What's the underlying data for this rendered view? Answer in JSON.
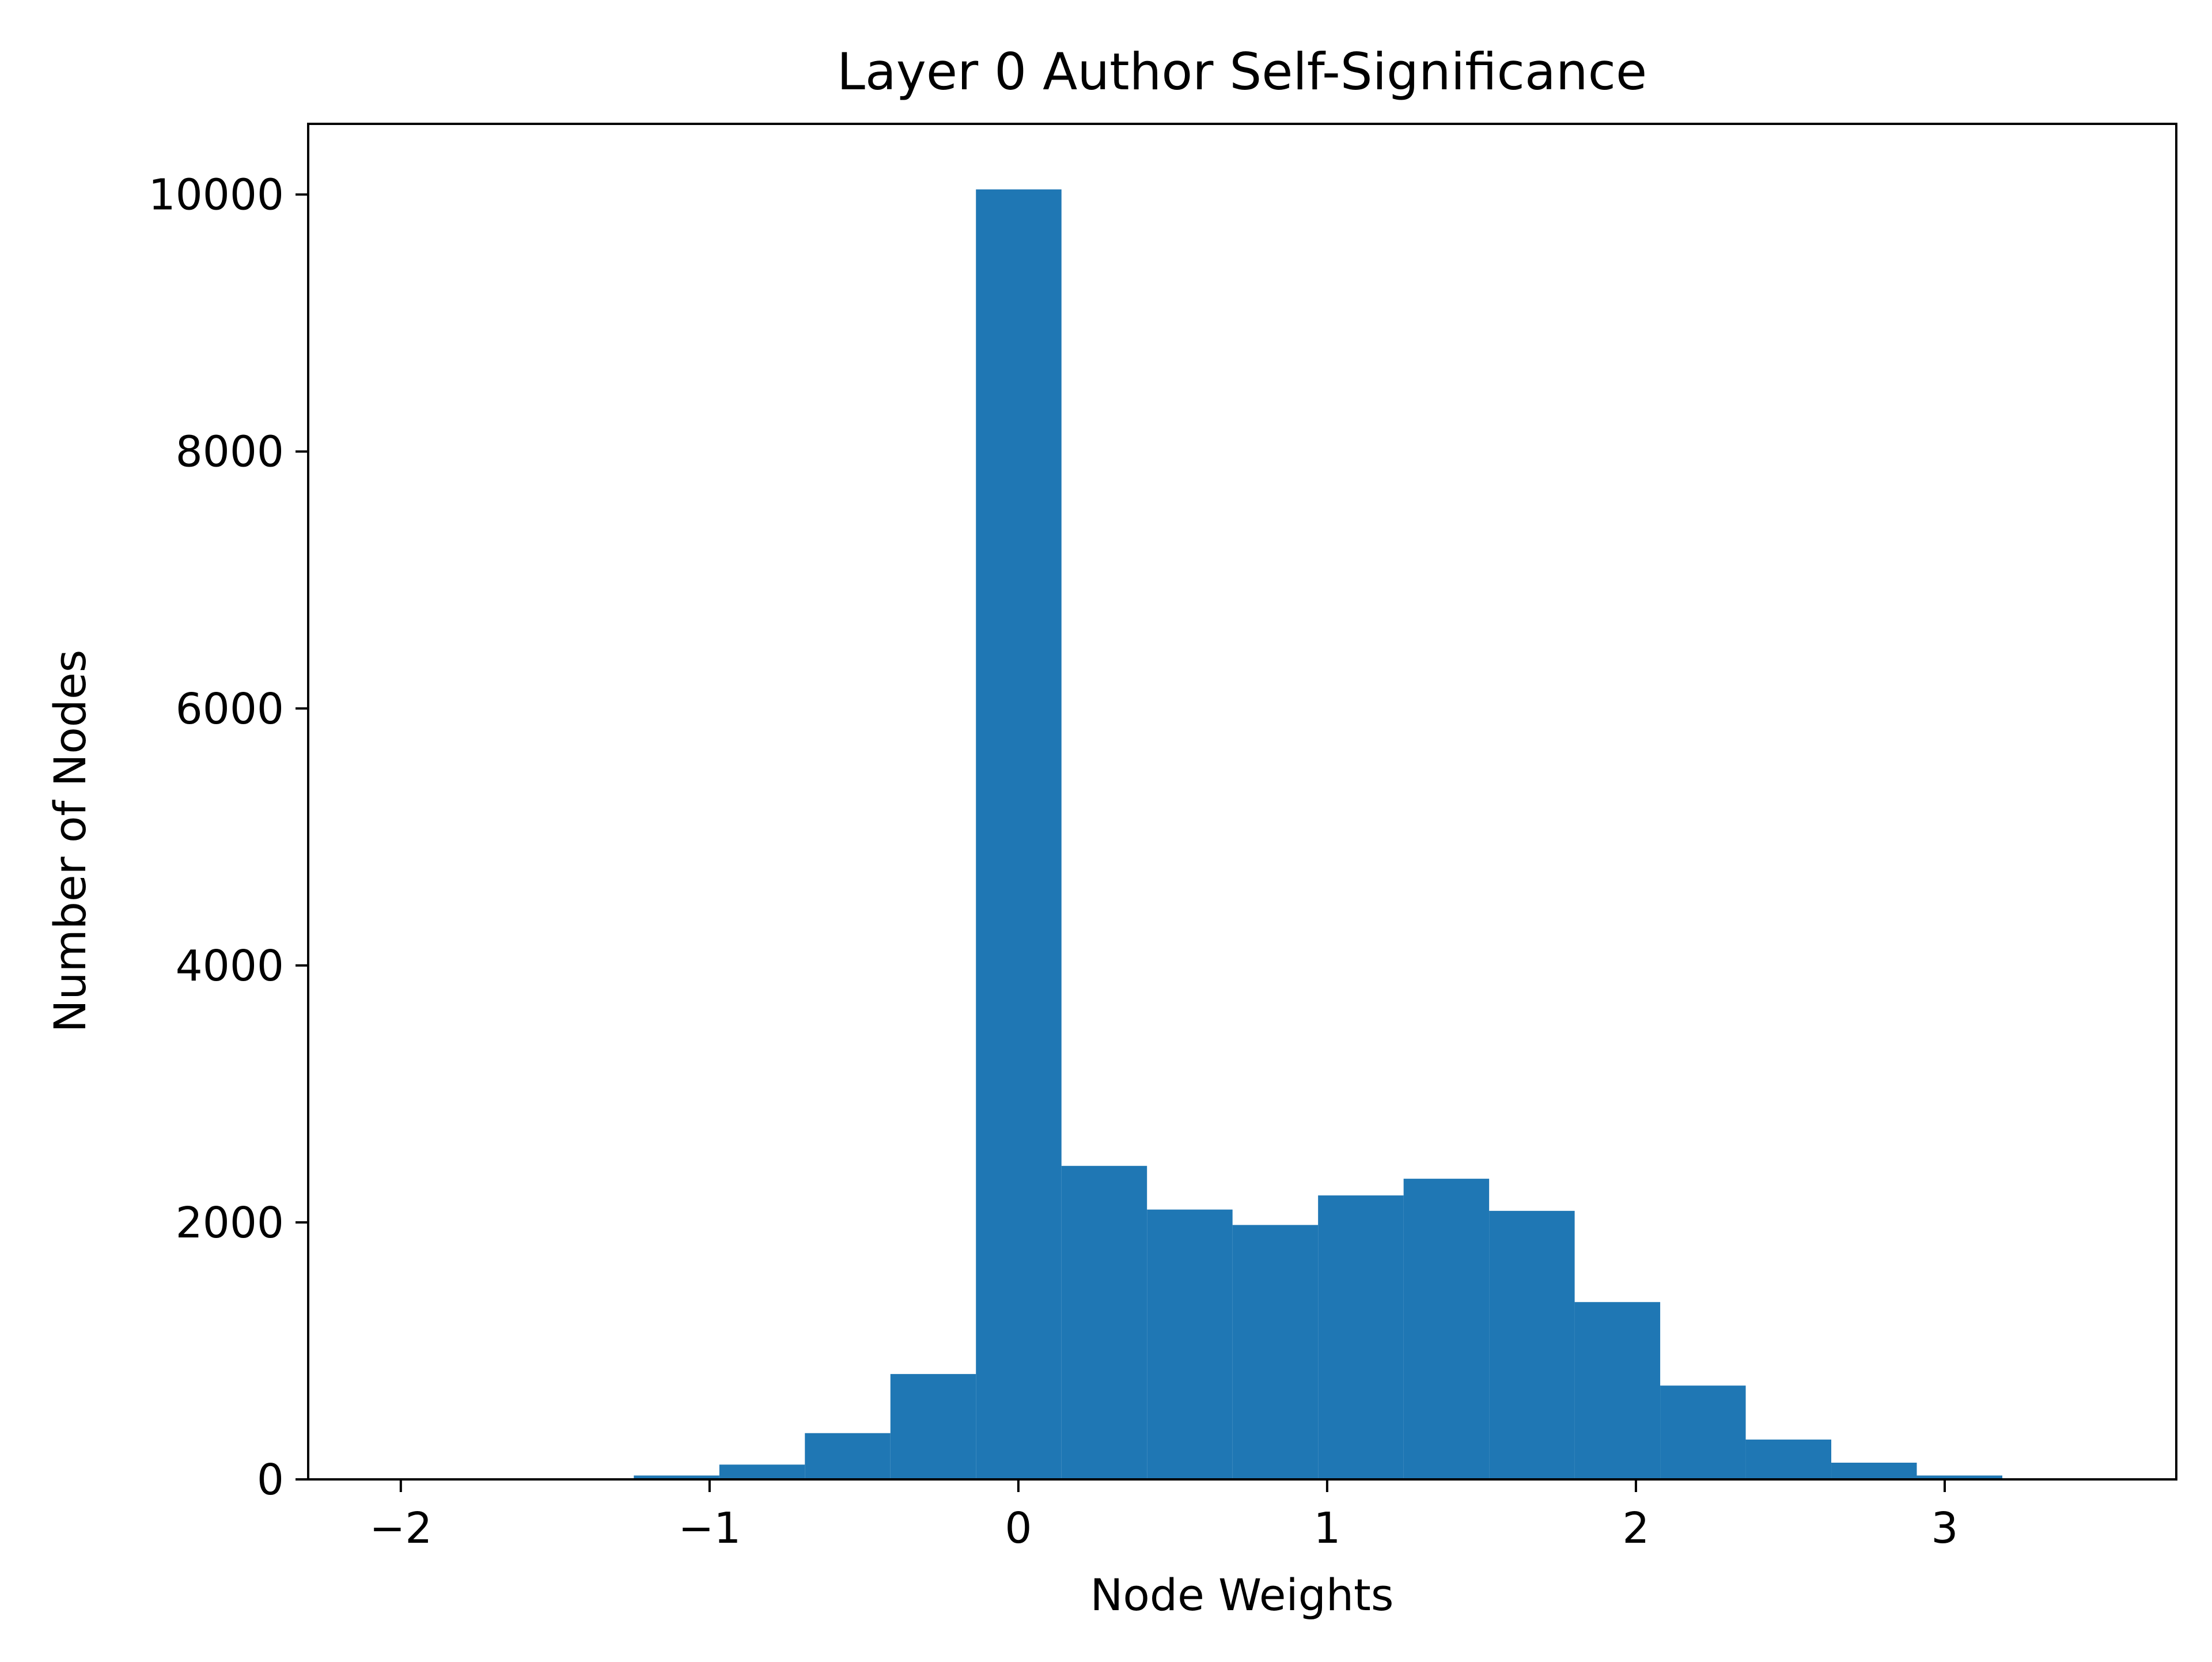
{
  "chart_data": {
    "type": "bar",
    "title": "Layer 0 Author Self-Significance",
    "xlabel": "Node Weights",
    "ylabel": "Number of Nodes",
    "xlim": [
      -2.3,
      3.75
    ],
    "ylim": [
      0,
      10550
    ],
    "grid": false,
    "x_ticks": [
      -2,
      -1,
      0,
      1,
      2,
      3
    ],
    "x_tick_labels": [
      "−2",
      "−1",
      "0",
      "1",
      "2",
      "3"
    ],
    "y_ticks": [
      0,
      2000,
      4000,
      6000,
      8000,
      10000
    ],
    "y_tick_labels": [
      "0",
      "2000",
      "4000",
      "6000",
      "8000",
      "10000"
    ],
    "bar_color": "#1f77b4",
    "bins": [
      {
        "x0": -2.0764,
        "x1": -1.7994,
        "count": 3
      },
      {
        "x0": -1.7994,
        "x1": -1.5224,
        "count": 3
      },
      {
        "x0": -1.5224,
        "x1": -1.2454,
        "count": 5
      },
      {
        "x0": -1.2454,
        "x1": -0.9684,
        "count": 30
      },
      {
        "x0": -0.9684,
        "x1": -0.6914,
        "count": 115
      },
      {
        "x0": -0.6914,
        "x1": -0.4144,
        "count": 360
      },
      {
        "x0": -0.4144,
        "x1": -0.1374,
        "count": 820
      },
      {
        "x0": -0.1374,
        "x1": 0.1396,
        "count": 10040
      },
      {
        "x0": 0.1396,
        "x1": 0.4166,
        "count": 2440
      },
      {
        "x0": 0.4166,
        "x1": 0.6936,
        "count": 2100
      },
      {
        "x0": 0.6936,
        "x1": 0.9706,
        "count": 1980
      },
      {
        "x0": 0.9706,
        "x1": 1.2476,
        "count": 2210
      },
      {
        "x0": 1.2476,
        "x1": 1.5246,
        "count": 2340
      },
      {
        "x0": 1.5246,
        "x1": 1.8016,
        "count": 2090
      },
      {
        "x0": 1.8016,
        "x1": 2.0786,
        "count": 1380
      },
      {
        "x0": 2.0786,
        "x1": 2.3556,
        "count": 730
      },
      {
        "x0": 2.3556,
        "x1": 2.6326,
        "count": 310
      },
      {
        "x0": 2.6326,
        "x1": 2.9096,
        "count": 130
      },
      {
        "x0": 2.9096,
        "x1": 3.1866,
        "count": 30
      },
      {
        "x0": 3.1866,
        "x1": 3.4636,
        "count": 5
      }
    ]
  }
}
